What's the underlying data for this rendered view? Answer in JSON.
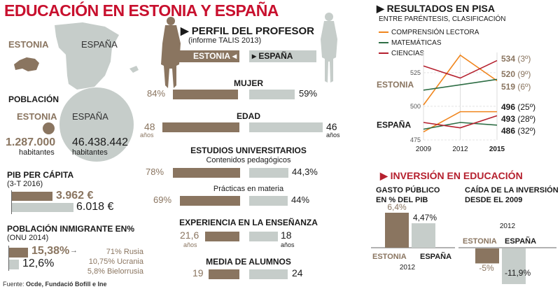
{
  "title": "EDUCACIÓN EN ESTONIA Y ESPAÑA",
  "colors": {
    "estonia": "#8a7560",
    "espana": "#c6cdca",
    "title_red": "#c8102e",
    "lectora": "#f0861e",
    "matematicas": "#2e6e45",
    "ciencias": "#b5202e"
  },
  "map": {
    "estonia_label": "ESTONIA",
    "espana_label": "ESPAÑA"
  },
  "poblacion": {
    "heading": "POBLACIÓN",
    "estonia_label": "ESTONIA",
    "espana_label": "ESPAÑA",
    "estonia_value": "1.287.000",
    "espana_value": "46.438.442",
    "unit": "habitantes"
  },
  "pib": {
    "heading": "PIB PER CÁPITA",
    "sub": "(3-T 2016)",
    "estonia_value": "3.962 €",
    "espana_value": "6.018 €",
    "estonia_num": 3962,
    "espana_num": 6018
  },
  "inmigrante": {
    "heading": "POBLACIÓN INMIGRANTE EN%",
    "sub": "(ONU 2014)",
    "estonia_value": "15,38%",
    "espana_value": "12,6%",
    "estonia_num": 15.38,
    "espana_num": 12.6,
    "arrow": "→",
    "breakdown": [
      {
        "pct": "71%",
        "name": "Rusia"
      },
      {
        "pct": "10,75%",
        "name": "Ucrania"
      },
      {
        "pct": "5,8%",
        "name": "Bielorrusia"
      }
    ]
  },
  "source": {
    "label": "Fuente:",
    "text": "Ocde, Fundació Bofill e Ine"
  },
  "perfil": {
    "heading": "▶ PERFIL DEL PROFESOR",
    "sub": "(informe TALIS 2013)",
    "estonia_tag": "ESTONIA ◂",
    "espana_tag": "▸ ESPAÑA",
    "rows": [
      {
        "label": "MUJER",
        "estonia": "84%",
        "espana": "59%",
        "estonia_num": 84,
        "espana_num": 59
      },
      {
        "label": "EDAD",
        "estonia": "48",
        "espana": "46",
        "unit": "años",
        "estonia_num": 48,
        "espana_num": 46
      },
      {
        "label": "ESTUDIOS UNIVERSITARIOS",
        "sublabel": "Contenidos pedagógicos",
        "estonia": "78%",
        "espana": "44,3%",
        "estonia_num": 78,
        "espana_num": 44.3
      },
      {
        "sublabel": "Prácticas en materia",
        "estonia": "69%",
        "espana": "44%",
        "estonia_num": 69,
        "espana_num": 44
      },
      {
        "label": "EXPERIENCIA EN LA ENSEÑANZA",
        "estonia": "21,6",
        "espana": "18",
        "unit": "años",
        "estonia_num": 21.6,
        "espana_num": 18
      },
      {
        "label": "MEDIA DE ALUMNOS",
        "estonia": "19",
        "espana": "24",
        "estonia_num": 19,
        "espana_num": 24
      }
    ]
  },
  "chart_data": [
    {
      "type": "line",
      "title": "▶ RESULTADOS EN PISA",
      "subtitle": "ENTRE PARÉNTESIS, CLASIFICACIÓN",
      "x": [
        "2009",
        "2012",
        "2015"
      ],
      "ylim": [
        475,
        540
      ],
      "yticks": [
        "475",
        "500",
        "525"
      ],
      "legend": [
        "COMPRENSIÓN LECTORA",
        "MATEMÁTICAS",
        "CIENCIAS"
      ],
      "legend_placement": "top-left",
      "group_labels": {
        "estonia": "ESTONIA",
        "espana": "ESPAÑA"
      },
      "series": [
        {
          "name": "Estonia Comprensión lectora",
          "subject": "lectora",
          "country": "estonia",
          "values": [
            501,
            538,
            519
          ]
        },
        {
          "name": "Estonia Matemáticas",
          "subject": "matematicas",
          "country": "estonia",
          "values": [
            512,
            516,
            520
          ]
        },
        {
          "name": "Estonia Ciencias",
          "subject": "ciencias",
          "country": "estonia",
          "values": [
            530,
            521,
            534
          ]
        },
        {
          "name": "España Comprensión lectora",
          "subject": "lectora",
          "country": "espana",
          "values": [
            481,
            496,
            496
          ]
        },
        {
          "name": "España Matemáticas",
          "subject": "matematicas",
          "country": "espana",
          "values": [
            483,
            488,
            486
          ]
        },
        {
          "name": "España Ciencias",
          "subject": "ciencias",
          "country": "espana",
          "values": [
            488,
            484,
            493
          ]
        }
      ],
      "end_labels": [
        {
          "value": "534",
          "rank": "(3º)",
          "country": "estonia"
        },
        {
          "value": "520",
          "rank": "(9º)",
          "country": "estonia"
        },
        {
          "value": "519",
          "rank": "(6º)",
          "country": "estonia"
        },
        {
          "value": "496",
          "rank": "(25º)",
          "country": "espana"
        },
        {
          "value": "493",
          "rank": "(28º)",
          "country": "espana"
        },
        {
          "value": "486",
          "rank": "(32º)",
          "country": "espana"
        }
      ]
    },
    {
      "type": "bar",
      "section_title": "▶ INVERSIÓN EN EDUCACIÓN",
      "title": "GASTO PÚBLICO EN % DEL PIB",
      "title_lines": [
        "GASTO PÚBLICO",
        "EN % DEL PIB"
      ],
      "categories": [
        "ESTONIA",
        "ESPAÑA"
      ],
      "values": [
        6.4,
        4.47
      ],
      "labels": [
        "6,4%",
        "4,47%"
      ],
      "xlabel": "2012"
    },
    {
      "type": "bar",
      "title": "CAÍDA DE LA INVERSIÓN DESDE EL 2009",
      "title_lines": [
        "CAÍDA DE LA INVERSIÓN",
        "DESDE EL 2009"
      ],
      "categories": [
        "ESTONIA",
        "ESPAÑA"
      ],
      "values": [
        -5,
        -11.9
      ],
      "labels": [
        "-5%",
        "-11,9%"
      ],
      "year": "2012"
    }
  ]
}
